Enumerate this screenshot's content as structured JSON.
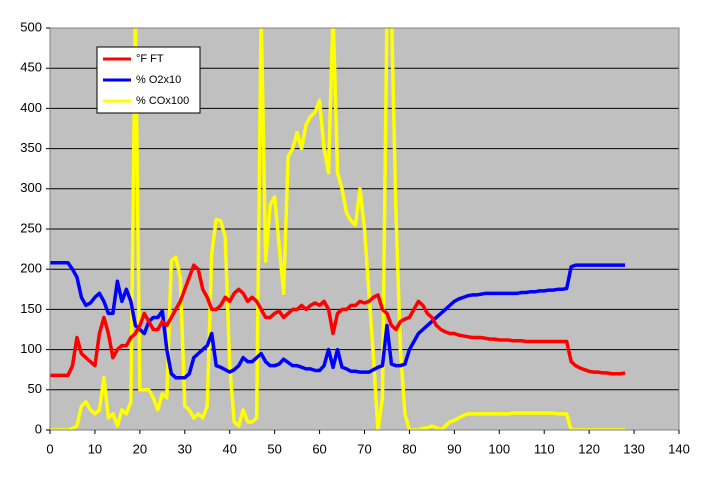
{
  "chart_data": {
    "type": "line",
    "x": [
      0,
      1,
      2,
      3,
      4,
      5,
      6,
      7,
      8,
      9,
      10,
      11,
      12,
      13,
      14,
      15,
      16,
      17,
      18,
      19,
      20,
      21,
      22,
      23,
      24,
      25,
      26,
      27,
      28,
      29,
      30,
      31,
      32,
      33,
      34,
      35,
      36,
      37,
      38,
      39,
      40,
      41,
      42,
      43,
      44,
      45,
      46,
      47,
      48,
      49,
      50,
      51,
      52,
      53,
      54,
      55,
      56,
      57,
      58,
      59,
      60,
      61,
      62,
      63,
      64,
      65,
      66,
      67,
      68,
      69,
      70,
      71,
      72,
      73,
      74,
      75,
      76,
      77,
      78,
      79,
      80,
      81,
      82,
      83,
      84,
      85,
      86,
      87,
      88,
      89,
      90,
      91,
      92,
      93,
      94,
      95,
      96,
      97,
      98,
      99,
      100,
      101,
      102,
      103,
      104,
      105,
      106,
      107,
      108,
      109,
      110,
      111,
      112,
      113,
      114,
      115,
      116,
      117,
      118,
      119,
      120,
      121,
      122,
      123,
      124,
      125,
      126,
      127,
      128
    ],
    "series": [
      {
        "name": "°F FT",
        "color": "#ff0000",
        "values": [
          68,
          68,
          68,
          68,
          68,
          80,
          115,
          95,
          90,
          85,
          80,
          120,
          140,
          120,
          90,
          100,
          105,
          105,
          115,
          120,
          130,
          145,
          135,
          125,
          125,
          135,
          130,
          140,
          150,
          160,
          175,
          190,
          205,
          200,
          175,
          165,
          150,
          150,
          155,
          165,
          160,
          170,
          175,
          170,
          160,
          165,
          160,
          150,
          140,
          140,
          145,
          148,
          140,
          145,
          150,
          150,
          155,
          150,
          155,
          158,
          155,
          160,
          150,
          120,
          145,
          150,
          150,
          155,
          155,
          160,
          158,
          160,
          165,
          168,
          150,
          145,
          130,
          125,
          135,
          138,
          140,
          150,
          160,
          155,
          145,
          140,
          130,
          125,
          122,
          120,
          120,
          118,
          117,
          116,
          115,
          115,
          115,
          114,
          113,
          113,
          112,
          112,
          112,
          111,
          111,
          111,
          110,
          110,
          110,
          110,
          110,
          110,
          110,
          110,
          110,
          110,
          85,
          80,
          77,
          75,
          73,
          72,
          72,
          71,
          71,
          70,
          70,
          70,
          71
        ]
      },
      {
        "name": "% O2x10",
        "color": "#0000ff",
        "values": [
          208,
          208,
          208,
          208,
          208,
          200,
          190,
          165,
          155,
          158,
          165,
          170,
          160,
          145,
          145,
          185,
          160,
          175,
          160,
          130,
          125,
          120,
          135,
          140,
          140,
          148,
          100,
          70,
          65,
          65,
          65,
          70,
          90,
          95,
          100,
          105,
          120,
          80,
          78,
          75,
          72,
          75,
          80,
          90,
          85,
          85,
          90,
          95,
          85,
          80,
          80,
          82,
          88,
          84,
          80,
          80,
          78,
          76,
          76,
          74,
          74,
          80,
          100,
          78,
          100,
          78,
          76,
          73,
          73,
          72,
          72,
          72,
          75,
          78,
          80,
          130,
          82,
          80,
          80,
          82,
          100,
          110,
          120,
          125,
          130,
          135,
          140,
          145,
          150,
          155,
          160,
          163,
          165,
          167,
          168,
          168,
          169,
          170,
          170,
          170,
          170,
          170,
          170,
          170,
          170,
          171,
          171,
          172,
          172,
          173,
          173,
          174,
          174,
          175,
          175,
          176,
          203,
          205,
          205,
          205,
          205,
          205,
          205,
          205,
          205,
          205,
          205,
          205,
          205
        ]
      },
      {
        "name": "% COx100",
        "color": "#ffff00",
        "values": [
          0,
          0,
          0,
          0,
          0,
          2,
          5,
          30,
          35,
          25,
          20,
          25,
          65,
          15,
          20,
          5,
          25,
          20,
          35,
          520,
          50,
          50,
          50,
          40,
          25,
          45,
          40,
          210,
          215,
          190,
          30,
          25,
          15,
          20,
          15,
          30,
          220,
          262,
          260,
          240,
          80,
          10,
          5,
          25,
          10,
          10,
          15,
          520,
          210,
          280,
          290,
          230,
          170,
          340,
          350,
          370,
          350,
          380,
          390,
          395,
          410,
          350,
          320,
          520,
          320,
          300,
          270,
          260,
          255,
          300,
          250,
          170,
          90,
          0,
          40,
          520,
          520,
          270,
          100,
          20,
          0,
          0,
          0,
          2,
          3,
          5,
          3,
          0,
          5,
          10,
          12,
          15,
          18,
          20,
          20,
          20,
          20,
          20,
          20,
          20,
          20,
          20,
          20,
          21,
          21,
          21,
          21,
          21,
          21,
          21,
          21,
          21,
          21,
          20,
          20,
          20,
          0,
          0,
          0,
          0,
          0,
          0,
          0,
          0,
          0,
          0,
          0,
          0,
          0
        ]
      }
    ],
    "xlim": [
      0,
      140
    ],
    "xticks": [
      0,
      10,
      20,
      30,
      40,
      50,
      60,
      70,
      80,
      90,
      100,
      110,
      120,
      130,
      140
    ],
    "ylim": [
      0,
      500
    ],
    "yticks": [
      0,
      50,
      100,
      150,
      200,
      250,
      300,
      350,
      400,
      450,
      500
    ],
    "grid": true,
    "legend": "upper-left",
    "plot_background": "#c0c0c0"
  }
}
